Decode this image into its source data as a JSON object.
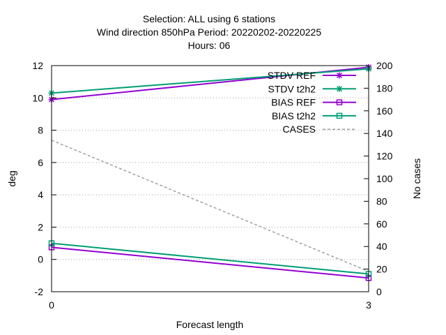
{
  "chart_data": {
    "type": "line",
    "title_lines": [
      "Selection: ALL using      6 stations",
      "Wind direction 850hPa   Period: 20220202-20220225",
      "Hours:  06"
    ],
    "xlabel": "Forecast length",
    "ylabel": "deg",
    "y2label": "No cases",
    "x": [
      0,
      3
    ],
    "xlim": [
      0,
      3
    ],
    "ylim": [
      -2,
      12
    ],
    "y2lim": [
      0,
      200
    ],
    "x_ticks": [
      "0",
      "3"
    ],
    "y_ticks": [
      "-2",
      "0",
      "2",
      "4",
      "6",
      "8",
      "10",
      "12"
    ],
    "y2_ticks": [
      "0",
      "20",
      "40",
      "60",
      "80",
      "100",
      "120",
      "140",
      "160",
      "180",
      "200"
    ],
    "grid": true,
    "legend_position": "top-right",
    "series": [
      {
        "name": "STDV REF",
        "axis": "y",
        "values": [
          9.9,
          11.9
        ],
        "color": "#9400d3",
        "marker": "x-star",
        "dash": false
      },
      {
        "name": "STDV t2h2",
        "axis": "y",
        "values": [
          10.3,
          11.8
        ],
        "color": "#009e73",
        "marker": "x-star",
        "dash": false
      },
      {
        "name": "BIAS REF",
        "axis": "y",
        "values": [
          0.75,
          -1.15
        ],
        "color": "#9400d3",
        "marker": "square",
        "dash": false
      },
      {
        "name": "BIAS t2h2",
        "axis": "y",
        "values": [
          1.0,
          -0.9
        ],
        "color": "#009e73",
        "marker": "square",
        "dash": false
      },
      {
        "name": "CASES",
        "axis": "y2",
        "values": [
          134,
          18
        ],
        "color": "#a0a0a0",
        "marker": "none",
        "dash": true
      }
    ]
  }
}
